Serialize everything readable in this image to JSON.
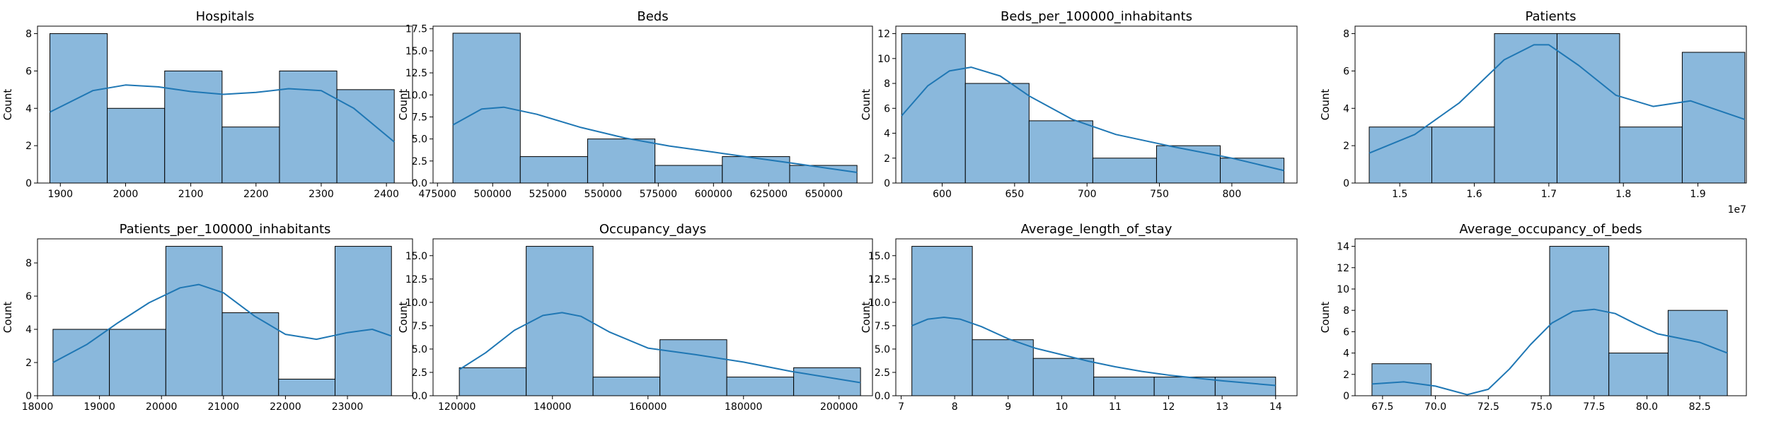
{
  "chart_data": [
    {
      "type": "bar",
      "title": "Hospitals",
      "ylabel": "Count",
      "xlim": [
        1865,
        2440
      ],
      "ylim": [
        0,
        8.4
      ],
      "xticks": [
        1900,
        2000,
        2100,
        2200,
        2300,
        2400
      ],
      "xtick_labels": [
        "1900",
        "2000",
        "2100",
        "2200",
        "2300",
        "2400"
      ],
      "yticks": [
        0,
        2,
        4,
        6,
        8
      ],
      "ytick_labels": [
        "0",
        "2",
        "4",
        "6",
        "8"
      ],
      "bins": [
        1884,
        1972,
        2060,
        2148,
        2236,
        2324,
        2412
      ],
      "counts": [
        8,
        4,
        6,
        3,
        6,
        5
      ],
      "kde_x": [
        1884,
        1950,
        2000,
        2050,
        2100,
        2150,
        2200,
        2250,
        2300,
        2350,
        2412
      ],
      "kde_y": [
        3.8,
        4.95,
        5.25,
        5.15,
        4.9,
        4.75,
        4.85,
        5.05,
        4.95,
        4.0,
        2.2
      ]
    },
    {
      "type": "bar",
      "title": "Beds",
      "ylabel": "Count",
      "xlim": [
        473000,
        672000
      ],
      "ylim": [
        0,
        17.8
      ],
      "xticks": [
        475000,
        500000,
        525000,
        550000,
        575000,
        600000,
        625000,
        650000
      ],
      "xtick_labels": [
        "475000",
        "500000",
        "525000",
        "550000",
        "575000",
        "600000",
        "625000",
        "650000"
      ],
      "yticks": [
        0,
        2.5,
        5,
        7.5,
        10,
        12.5,
        15,
        17.5
      ],
      "ytick_labels": [
        "0.0",
        "2.5",
        "5.0",
        "7.5",
        "10.0",
        "12.5",
        "15.0",
        "17.5"
      ],
      "bins": [
        482000,
        512500,
        543000,
        573500,
        604000,
        634500,
        665000
      ],
      "counts": [
        17,
        3,
        5,
        2,
        3,
        2
      ],
      "kde_x": [
        482000,
        495000,
        505000,
        520000,
        540000,
        560000,
        580000,
        600000,
        620000,
        640000,
        665000
      ],
      "kde_y": [
        6.6,
        8.4,
        8.6,
        7.8,
        6.3,
        5.1,
        4.2,
        3.5,
        2.8,
        2.1,
        1.2
      ]
    },
    {
      "type": "bar",
      "title": "Beds_per_100000_inhabitants",
      "ylabel": "Count",
      "xlim": [
        568,
        845
      ],
      "ylim": [
        0,
        12.6
      ],
      "xticks": [
        600,
        650,
        700,
        750,
        800
      ],
      "xtick_labels": [
        "600",
        "650",
        "700",
        "750",
        "800"
      ],
      "yticks": [
        0,
        2,
        4,
        6,
        8,
        10,
        12
      ],
      "ytick_labels": [
        "0",
        "2",
        "4",
        "6",
        "8",
        "10",
        "12"
      ],
      "bins": [
        572,
        616,
        660,
        704,
        748,
        792,
        836
      ],
      "counts": [
        12,
        8,
        5,
        2,
        3,
        2
      ],
      "kde_x": [
        572,
        590,
        605,
        620,
        640,
        660,
        690,
        720,
        760,
        800,
        836
      ],
      "kde_y": [
        5.4,
        7.8,
        9.0,
        9.3,
        8.6,
        7.0,
        5.1,
        3.9,
        2.9,
        2.0,
        1.0
      ]
    },
    {
      "type": "bar",
      "title": "Patients",
      "ylabel": "Count",
      "xlim": [
        14400000,
        19650000
      ],
      "ylim": [
        0,
        8.4
      ],
      "xticks": [
        15000000,
        16000000,
        17000000,
        18000000,
        19000000
      ],
      "xtick_labels": [
        "1.5",
        "1.6",
        "1.7",
        "1.8",
        "1.9"
      ],
      "x_offset_label": "1e7",
      "yticks": [
        0,
        2,
        4,
        6,
        8
      ],
      "ytick_labels": [
        "0",
        "2",
        "4",
        "6",
        "8"
      ],
      "bins": [
        14590000,
        15430000,
        16270000,
        17110000,
        17950000,
        18790000,
        19630000
      ],
      "counts": [
        3,
        3,
        8,
        8,
        3,
        7
      ],
      "kde_x": [
        14590000,
        15200000,
        15800000,
        16400000,
        16800000,
        17000000,
        17400000,
        17900000,
        18400000,
        18900000,
        19630000
      ],
      "kde_y": [
        1.6,
        2.6,
        4.3,
        6.6,
        7.4,
        7.4,
        6.3,
        4.7,
        4.1,
        4.4,
        3.4
      ]
    },
    {
      "type": "bar",
      "title": "Patients_per_100000_inhabitants",
      "ylabel": "Count",
      "xlim": [
        18000,
        24050
      ],
      "ylim": [
        0,
        9.45
      ],
      "xticks": [
        18000,
        19000,
        20000,
        21000,
        22000,
        23000
      ],
      "xtick_labels": [
        "18000",
        "19000",
        "20000",
        "21000",
        "22000",
        "23000"
      ],
      "yticks": [
        0,
        2,
        4,
        6,
        8
      ],
      "ytick_labels": [
        "0",
        "2",
        "4",
        "6",
        "8"
      ],
      "bins": [
        18250,
        19160,
        20070,
        20980,
        21890,
        22800,
        23710
      ],
      "counts": [
        4,
        4,
        9,
        5,
        1,
        9
      ],
      "kde_x": [
        18250,
        18800,
        19300,
        19800,
        20300,
        20600,
        21000,
        21500,
        22000,
        22500,
        23000,
        23400,
        23710
      ],
      "kde_y": [
        2.0,
        3.1,
        4.4,
        5.6,
        6.5,
        6.7,
        6.2,
        4.8,
        3.7,
        3.4,
        3.8,
        4.0,
        3.6
      ]
    },
    {
      "type": "bar",
      "title": "Occupancy_days",
      "ylabel": "Count",
      "xlim": [
        115000,
        207000
      ],
      "ylim": [
        0,
        16.8
      ],
      "xticks": [
        120000,
        140000,
        160000,
        180000,
        200000
      ],
      "xtick_labels": [
        "120000",
        "140000",
        "160000",
        "180000",
        "200000"
      ],
      "yticks": [
        0,
        2.5,
        5,
        7.5,
        10,
        12.5,
        15
      ],
      "ytick_labels": [
        "0.0",
        "2.5",
        "5.0",
        "7.5",
        "10.0",
        "12.5",
        "15.0"
      ],
      "bins": [
        120500,
        134500,
        148500,
        162500,
        176500,
        190500,
        204500
      ],
      "counts": [
        3,
        16,
        2,
        6,
        2,
        3
      ],
      "kde_x": [
        120500,
        126000,
        132000,
        138000,
        142000,
        146000,
        152000,
        160000,
        170000,
        180000,
        190000,
        204500
      ],
      "kde_y": [
        2.8,
        4.6,
        7.0,
        8.6,
        8.9,
        8.5,
        6.8,
        5.1,
        4.4,
        3.6,
        2.6,
        1.4
      ]
    },
    {
      "type": "bar",
      "title": "Average_length_of_stay",
      "ylabel": "Count",
      "xlim": [
        6.9,
        14.4
      ],
      "ylim": [
        0,
        16.8
      ],
      "xticks": [
        7,
        8,
        9,
        10,
        11,
        12,
        13,
        14
      ],
      "xtick_labels": [
        "7",
        "8",
        "9",
        "10",
        "11",
        "12",
        "13",
        "14"
      ],
      "yticks": [
        0,
        2.5,
        5,
        7.5,
        10,
        12.5,
        15
      ],
      "ytick_labels": [
        "0.0",
        "2.5",
        "5.0",
        "7.5",
        "10.0",
        "12.5",
        "15.0"
      ],
      "bins": [
        7.2,
        8.33,
        9.47,
        10.6,
        11.73,
        12.87,
        14.0
      ],
      "counts": [
        16,
        6,
        4,
        2,
        2,
        2
      ],
      "kde_x": [
        7.2,
        7.5,
        7.8,
        8.1,
        8.5,
        9.0,
        9.5,
        10.0,
        10.5,
        11.0,
        11.5,
        12.0,
        12.5,
        13.0,
        14.0
      ],
      "kde_y": [
        7.5,
        8.2,
        8.4,
        8.2,
        7.4,
        6.1,
        5.1,
        4.4,
        3.7,
        3.1,
        2.6,
        2.2,
        1.9,
        1.6,
        1.1
      ]
    },
    {
      "type": "bar",
      "title": "Average_occupancy_of_beds",
      "ylabel": "Count",
      "xlim": [
        66.2,
        84.7
      ],
      "ylim": [
        0,
        14.7
      ],
      "xticks": [
        67.5,
        70,
        72.5,
        75,
        77.5,
        80,
        82.5
      ],
      "xtick_labels": [
        "67.5",
        "70.0",
        "72.5",
        "75.0",
        "77.5",
        "80.0",
        "82.5"
      ],
      "yticks": [
        0,
        2,
        4,
        6,
        8,
        10,
        12,
        14
      ],
      "ytick_labels": [
        "0",
        "2",
        "4",
        "6",
        "8",
        "10",
        "12",
        "14"
      ],
      "bins": [
        67.0,
        69.8,
        72.6,
        75.4,
        78.2,
        81.0,
        83.8
      ],
      "counts": [
        3,
        0,
        0,
        14,
        4,
        8
      ],
      "kde_x": [
        67.0,
        68.5,
        70.0,
        71.5,
        72.5,
        73.5,
        74.5,
        75.5,
        76.5,
        77.5,
        78.5,
        79.5,
        80.5,
        81.5,
        82.5,
        83.8
      ],
      "kde_y": [
        1.1,
        1.3,
        0.9,
        0.1,
        0.6,
        2.5,
        4.8,
        6.8,
        7.9,
        8.1,
        7.7,
        6.7,
        5.8,
        5.4,
        5.0,
        4.0
      ]
    }
  ]
}
